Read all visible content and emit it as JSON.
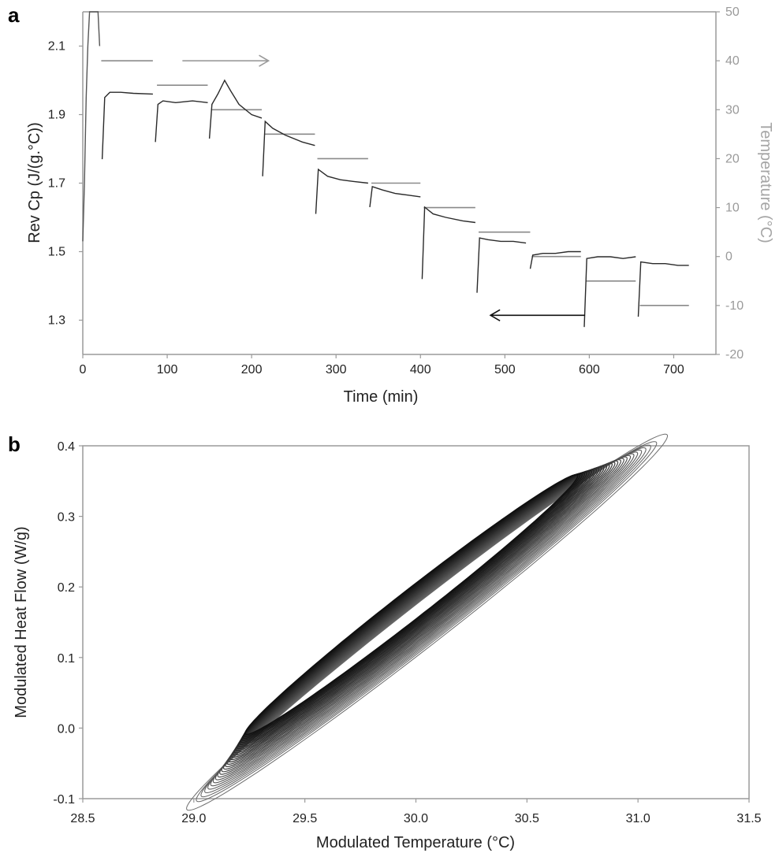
{
  "chart_data": [
    {
      "panel": "a",
      "type": "line",
      "xlabel": "Time (min)",
      "ylabel": "Rev Cp (J/(g.°C))",
      "y2label": "Temperature (°C)",
      "xlim": [
        0,
        750
      ],
      "ylim": [
        1.2,
        2.2
      ],
      "y2lim": [
        -20,
        50
      ],
      "xticks": [
        0,
        100,
        200,
        300,
        400,
        500,
        600,
        700
      ],
      "yticks": [
        1.3,
        1.5,
        1.7,
        1.9,
        2.1
      ],
      "y2ticks": [
        -20,
        -10,
        0,
        10,
        20,
        30,
        40,
        50
      ],
      "cp_segments": [
        {
          "x": [
            23,
            26,
            32,
            45,
            60,
            83
          ],
          "y": [
            1.77,
            1.95,
            1.965,
            1.965,
            1.962,
            1.96
          ]
        },
        {
          "x": [
            86,
            89,
            95,
            110,
            130,
            148
          ],
          "y": [
            1.82,
            1.93,
            1.94,
            1.935,
            1.94,
            1.935
          ]
        },
        {
          "x": [
            150,
            153,
            160,
            168,
            175,
            185,
            200,
            212
          ],
          "y": [
            1.83,
            1.93,
            1.96,
            2.0,
            1.97,
            1.93,
            1.9,
            1.89
          ]
        },
        {
          "x": [
            213,
            216,
            225,
            240,
            260,
            275
          ],
          "y": [
            1.72,
            1.88,
            1.86,
            1.84,
            1.82,
            1.81
          ]
        },
        {
          "x": [
            276,
            279,
            290,
            305,
            320,
            338
          ],
          "y": [
            1.61,
            1.74,
            1.72,
            1.71,
            1.705,
            1.7
          ]
        },
        {
          "x": [
            340,
            343,
            355,
            370,
            385,
            400
          ],
          "y": [
            1.63,
            1.69,
            1.68,
            1.67,
            1.665,
            1.66
          ]
        },
        {
          "x": [
            402,
            405,
            415,
            430,
            450,
            465
          ],
          "y": [
            1.42,
            1.63,
            1.61,
            1.6,
            1.59,
            1.585
          ]
        },
        {
          "x": [
            467,
            470,
            480,
            495,
            510,
            525
          ],
          "y": [
            1.38,
            1.54,
            1.535,
            1.53,
            1.53,
            1.525
          ]
        },
        {
          "x": [
            530,
            533,
            545,
            560,
            575,
            590
          ],
          "y": [
            1.45,
            1.49,
            1.495,
            1.495,
            1.5,
            1.5
          ]
        },
        {
          "x": [
            594,
            597,
            610,
            625,
            640,
            655
          ],
          "y": [
            1.28,
            1.48,
            1.485,
            1.485,
            1.48,
            1.485
          ]
        },
        {
          "x": [
            658,
            661,
            675,
            690,
            705,
            718
          ],
          "y": [
            1.31,
            1.47,
            1.465,
            1.465,
            1.46,
            1.46
          ]
        }
      ],
      "initial_cp_trace": {
        "x": [
          0,
          2,
          4,
          6,
          8,
          10,
          14,
          18,
          20
        ],
        "y": [
          1.53,
          1.7,
          1.95,
          2.1,
          2.2,
          2.2,
          2.2,
          2.2,
          2.1
        ]
      },
      "temperature_steps": [
        {
          "x0": 20,
          "x1": 83,
          "t": 40
        },
        {
          "x0": 86,
          "x1": 148,
          "t": 35
        },
        {
          "x0": 150,
          "x1": 212,
          "t": 30
        },
        {
          "x0": 213,
          "x1": 275,
          "t": 25
        },
        {
          "x0": 276,
          "x1": 338,
          "t": 20
        },
        {
          "x0": 340,
          "x1": 400,
          "t": 15
        },
        {
          "x0": 402,
          "x1": 465,
          "t": 10
        },
        {
          "x0": 467,
          "x1": 530,
          "t": 5
        },
        {
          "x0": 530,
          "x1": 590,
          "t": 0
        },
        {
          "x0": 594,
          "x1": 655,
          "t": -5
        },
        {
          "x0": 658,
          "x1": 718,
          "t": -10
        }
      ],
      "arrows": [
        {
          "x0": 118,
          "x1": 220,
          "t": 40,
          "color": "#9a9a9a"
        },
        {
          "x0": 595,
          "x1": 483,
          "t": -12,
          "color": "#111111"
        }
      ]
    },
    {
      "panel": "b",
      "type": "line",
      "xlabel": "Modulated Temperature (°C)",
      "ylabel": "Modulated Heat Flow (W/g)",
      "xlim": [
        28.5,
        31.5
      ],
      "ylim": [
        -0.1,
        0.4
      ],
      "xticks": [
        28.5,
        29.0,
        29.5,
        30.0,
        30.5,
        31.0,
        31.5
      ],
      "yticks": [
        -0.1,
        0.0,
        0.1,
        0.2,
        0.3,
        0.4
      ],
      "loop_family": {
        "count": 28,
        "center_start": [
          30.05,
          0.15
        ],
        "center_end": [
          29.98,
          0.175
        ],
        "semi_major_start": 1.33,
        "semi_major_end": 0.92,
        "semi_minor_start": 0.11,
        "semi_minor_end": 0.075,
        "tilt_deg": -37
      }
    }
  ],
  "panel_letters": {
    "a": "a",
    "b": "b"
  }
}
